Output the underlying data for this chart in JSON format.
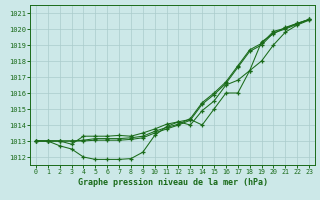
{
  "xlabel": "Graphe pression niveau de la mer (hPa)",
  "xlim": [
    -0.5,
    23.5
  ],
  "ylim": [
    1011.5,
    1021.5
  ],
  "yticks": [
    1012,
    1013,
    1014,
    1015,
    1016,
    1017,
    1018,
    1019,
    1020,
    1021
  ],
  "xticks": [
    0,
    1,
    2,
    3,
    4,
    5,
    6,
    7,
    8,
    9,
    10,
    11,
    12,
    13,
    14,
    15,
    16,
    17,
    18,
    19,
    20,
    21,
    22,
    23
  ],
  "bg_color": "#cce8e8",
  "line_color": "#1a6b1a",
  "grid_color": "#aacccc",
  "line1": [
    1013.0,
    1013.0,
    1012.7,
    1012.5,
    1012.0,
    1011.85,
    1011.85,
    1011.85,
    1011.9,
    1012.3,
    1013.35,
    1013.9,
    1014.2,
    1014.35,
    1014.0,
    1015.0,
    1016.0,
    1016.0,
    1017.4,
    1019.2,
    1019.7,
    1020.1,
    1020.35,
    1020.6
  ],
  "line2": [
    1013.0,
    1013.0,
    1013.0,
    1012.8,
    1013.3,
    1013.3,
    1013.3,
    1013.35,
    1013.3,
    1013.5,
    1013.75,
    1014.05,
    1014.2,
    1014.0,
    1014.9,
    1015.5,
    1016.5,
    1016.8,
    1017.4,
    1018.0,
    1019.0,
    1019.8,
    1020.25,
    1020.55
  ],
  "line3": [
    1013.0,
    1013.0,
    1013.0,
    1013.0,
    1013.05,
    1013.15,
    1013.15,
    1013.15,
    1013.2,
    1013.3,
    1013.6,
    1013.85,
    1014.05,
    1014.4,
    1015.4,
    1016.0,
    1016.7,
    1017.7,
    1018.7,
    1019.1,
    1019.85,
    1020.05,
    1020.35,
    1020.6
  ],
  "line4": [
    1013.0,
    1013.0,
    1013.0,
    1013.0,
    1013.0,
    1013.05,
    1013.05,
    1013.05,
    1013.1,
    1013.2,
    1013.5,
    1013.75,
    1014.0,
    1014.3,
    1015.3,
    1015.9,
    1016.6,
    1017.6,
    1018.6,
    1019.0,
    1019.75,
    1020.0,
    1020.3,
    1020.6
  ]
}
